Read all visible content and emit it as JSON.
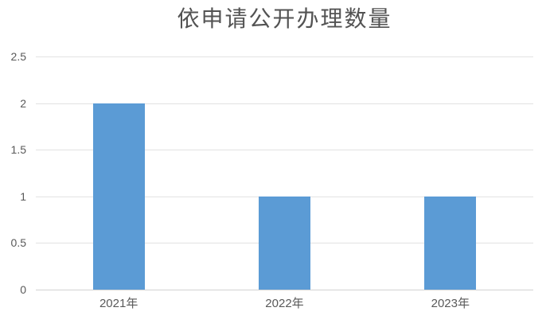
{
  "chart_data": {
    "type": "bar",
    "title": "依申请公开办理数量",
    "categories": [
      "2021年",
      "2022年",
      "2023年"
    ],
    "values": [
      2,
      1,
      1
    ],
    "xlabel": "",
    "ylabel": "",
    "ylim": [
      0,
      2.5
    ],
    "ytick_interval": 0.5,
    "yticks": [
      "0",
      "0.5",
      "1",
      "1.5",
      "2",
      "2.5"
    ],
    "grid": "horizontal-only",
    "legend_position": "none",
    "colors": {
      "bar": "#5b9bd5",
      "title_text": "#535353",
      "tick_text": "#595959",
      "gridline": "#e2e2e2",
      "axis_line": "#d2d2d2",
      "background": "#ffffff"
    }
  }
}
